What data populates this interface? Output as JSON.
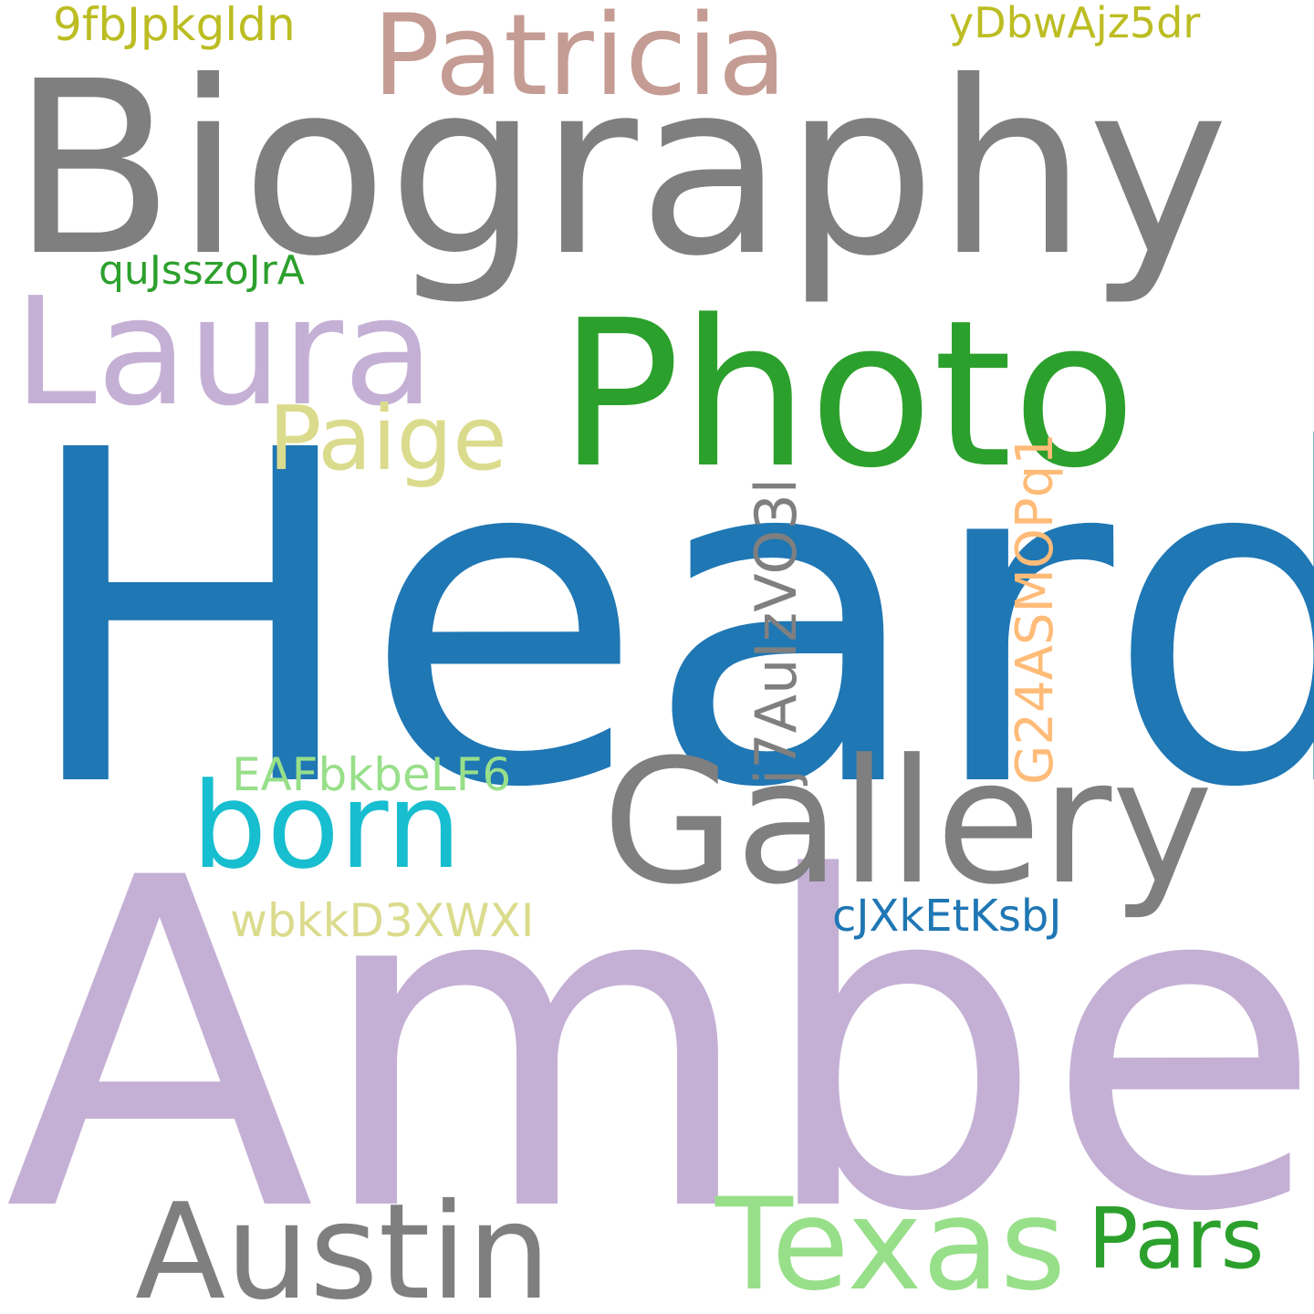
{
  "colors": {
    "background": "#ffffff",
    "grey": "#7f7f7f",
    "blue": "#1f77b4",
    "green": "#2ca02c",
    "lavender": "#c5b0d5",
    "light_green": "#98df8a",
    "cyan": "#17becf",
    "rose": "#c49c94",
    "olive": "#bcbd22",
    "khaki": "#dbdb8d",
    "peach": "#ffbb78"
  },
  "words": [
    {
      "id": "heard",
      "text": "Heard",
      "color": "#1f77b4"
    },
    {
      "id": "amber",
      "text": "Amber",
      "color": "#c5b0d5"
    },
    {
      "id": "biography",
      "text": "Biography",
      "color": "#7f7f7f"
    },
    {
      "id": "photo",
      "text": "Photo",
      "color": "#2ca02c"
    },
    {
      "id": "gallery",
      "text": "Gallery",
      "color": "#7f7f7f"
    },
    {
      "id": "laura",
      "text": "Laura",
      "color": "#c5b0d5"
    },
    {
      "id": "patricia",
      "text": "Patricia",
      "color": "#c49c94"
    },
    {
      "id": "austin",
      "text": "Austin",
      "color": "#7f7f7f"
    },
    {
      "id": "texas",
      "text": "Texas",
      "color": "#98df8a"
    },
    {
      "id": "born",
      "text": "born",
      "color": "#17becf"
    },
    {
      "id": "paige",
      "text": "Paige",
      "color": "#dbdb8d"
    },
    {
      "id": "pars",
      "text": "Pars",
      "color": "#2ca02c"
    },
    {
      "id": "j7AuIzVO3l",
      "text": "j7AuIzVO3l",
      "color": "#7f7f7f"
    },
    {
      "id": "G24ASMOPq1",
      "text": "G24ASMOPq1",
      "color": "#ffbb78"
    },
    {
      "id": "9fbJpkgldn",
      "text": "9fbJpkgldn",
      "color": "#bcbd22"
    },
    {
      "id": "yDbwAjz5dr",
      "text": "yDbwAjz5dr",
      "color": "#bcbd22"
    },
    {
      "id": "quJsszoJrA",
      "text": "quJsszoJrA",
      "color": "#2ca02c"
    },
    {
      "id": "EAFbkbeLF6",
      "text": "EAFbkbeLF6",
      "color": "#98df8a"
    },
    {
      "id": "wbkkD3XWXI",
      "text": "wbkkD3XWXI",
      "color": "#dbdb8d"
    },
    {
      "id": "cJXkEtKsbJ",
      "text": "cJXkEtKsbJ",
      "color": "#1f77b4"
    }
  ]
}
